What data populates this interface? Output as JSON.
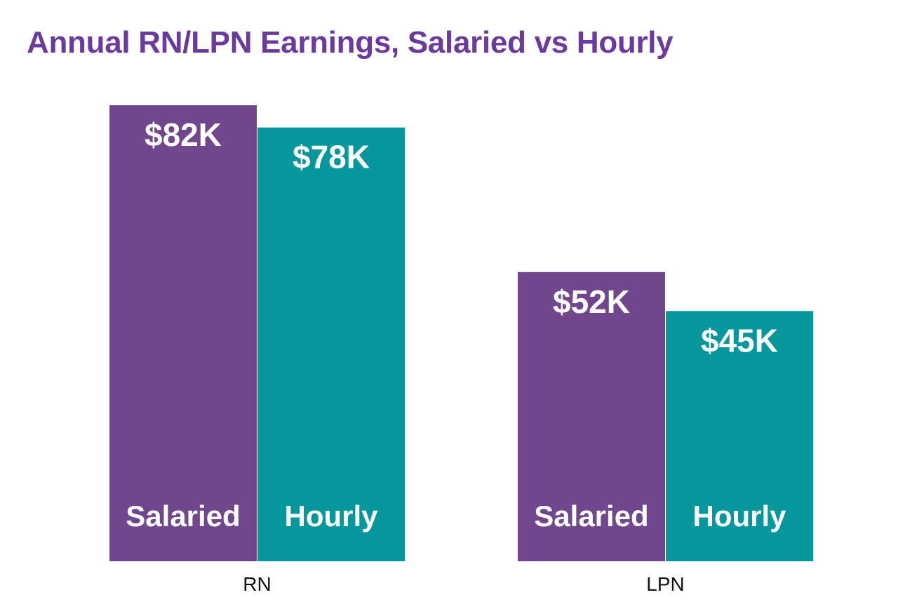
{
  "chart_data": {
    "type": "bar",
    "title": "Annual RN/LPN Earnings, Salaried vs Hourly",
    "categories": [
      "RN",
      "LPN"
    ],
    "series": [
      {
        "name": "Salaried",
        "values": [
          82,
          52
        ],
        "value_labels": [
          "$82K",
          "$52K"
        ],
        "color": "#70478d"
      },
      {
        "name": "Hourly",
        "values": [
          78,
          45
        ],
        "value_labels": [
          "$78K",
          "$45K"
        ],
        "color": "#06979c"
      }
    ],
    "ylim": [
      0,
      82
    ],
    "grid": false,
    "legend": "none"
  }
}
